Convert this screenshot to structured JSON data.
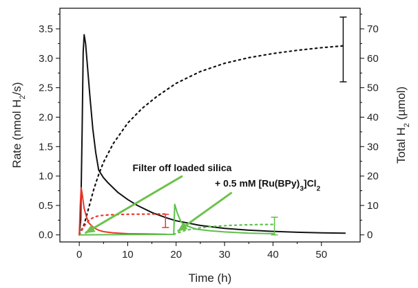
{
  "chart_data": {
    "type": "line",
    "xlabel": "Time (h)",
    "ylabel_left_parts": [
      "Rate (nmol H",
      "2",
      "/s)"
    ],
    "ylabel_right_parts": [
      "Total H",
      "2",
      " (µmol)"
    ],
    "xlim": [
      -4,
      58
    ],
    "ylim_left": [
      -0.12,
      3.85
    ],
    "ylim_right": [
      -2.4,
      77
    ],
    "x_ticks": [
      0,
      10,
      20,
      30,
      40,
      50
    ],
    "y_left_ticks": [
      0.0,
      0.5,
      1.0,
      1.5,
      2.0,
      2.5,
      3.0,
      3.5
    ],
    "y_right_ticks": [
      0,
      10,
      20,
      30,
      40,
      50,
      60,
      70
    ],
    "x_tick_labels": [
      "0",
      "10",
      "20",
      "30",
      "40",
      "50"
    ],
    "y_left_tick_labels": [
      "0.0",
      "0.5",
      "1.0",
      "1.5",
      "2.0",
      "2.5",
      "3.0",
      "3.5"
    ],
    "y_right_tick_labels": [
      "0",
      "10",
      "20",
      "30",
      "40",
      "50",
      "60",
      "70"
    ],
    "colors": {
      "black": "#111111",
      "red": "#e8362a",
      "green": "#5cbf48",
      "arrow": "#6cc24a"
    },
    "series": [
      {
        "color": "black",
        "style": "solid",
        "axis": "left",
        "x": [
          0,
          0.3,
          0.6,
          0.8,
          1.0,
          1.3,
          1.7,
          2.2,
          2.8,
          3.4,
          4,
          5,
          6,
          8,
          10,
          12,
          15,
          18,
          20,
          25,
          30,
          35,
          40,
          45,
          50,
          55
        ],
        "y": [
          0,
          0.25,
          1.8,
          3.1,
          3.4,
          3.25,
          2.85,
          2.35,
          1.8,
          1.4,
          1.1,
          0.97,
          0.88,
          0.72,
          0.6,
          0.5,
          0.38,
          0.29,
          0.24,
          0.16,
          0.11,
          0.08,
          0.06,
          0.045,
          0.035,
          0.03
        ]
      },
      {
        "color": "black",
        "style": "dotted",
        "axis": "right",
        "x": [
          0,
          1,
          2,
          3,
          4,
          5,
          7,
          10,
          13,
          16,
          20,
          25,
          30,
          35,
          40,
          45,
          50,
          55
        ],
        "y": [
          0,
          3.5,
          9.5,
          15.5,
          20.5,
          24.7,
          31,
          38,
          43,
          47,
          51.5,
          55.5,
          58.3,
          60.2,
          61.6,
          62.7,
          63.6,
          64.3
        ]
      },
      {
        "color": "red",
        "style": "solid",
        "axis": "left",
        "x": [
          0,
          0.2,
          0.4,
          0.6,
          1.0,
          1.5,
          2.0,
          3.0,
          4.0,
          5.0,
          7.0,
          10.0,
          14.0,
          18.0
        ],
        "y": [
          0,
          0.5,
          0.8,
          0.7,
          0.45,
          0.3,
          0.2,
          0.12,
          0.08,
          0.055,
          0.035,
          0.02,
          0.015,
          0.01
        ]
      },
      {
        "color": "red",
        "style": "dotted",
        "axis": "right",
        "x": [
          0,
          0.5,
          1,
          2,
          3,
          4,
          6,
          10,
          14,
          18
        ],
        "y": [
          0,
          1.5,
          3,
          5,
          6,
          6.5,
          6.8,
          7,
          7.05,
          7.1
        ]
      },
      {
        "color": "green",
        "style": "solid",
        "axis": "left",
        "x": [
          0,
          19.5,
          19.7,
          20.2,
          21,
          22,
          24,
          27,
          30,
          35,
          40.4
        ],
        "y": [
          0,
          0.01,
          0.52,
          0.38,
          0.22,
          0.16,
          0.1,
          0.07,
          0.05,
          0.03,
          0.02
        ]
      },
      {
        "color": "green",
        "style": "dotted",
        "axis": "right",
        "x": [
          19.5,
          22,
          25,
          28,
          31,
          34,
          37,
          40.4
        ],
        "y": [
          0.2,
          1.6,
          2.4,
          2.9,
          3.2,
          3.4,
          3.5,
          3.55
        ]
      }
    ],
    "error_bars": [
      {
        "color": "black",
        "axis": "right",
        "x": 54.5,
        "low": 52,
        "high": 74
      },
      {
        "color": "red",
        "axis": "right",
        "x": 17.8,
        "low": 2.5,
        "high": 7
      },
      {
        "color": "green",
        "axis": "right",
        "x": 40.3,
        "low": 0,
        "high": 6
      }
    ],
    "annotations": [
      {
        "text": "Filter off loaded silica",
        "color": "black",
        "tx": 11,
        "ty": 1.08,
        "ax1": 21.3,
        "ay1": 1.0,
        "ax2": 1.2,
        "ay2": 0.03
      },
      {
        "text_parts": [
          "+ 0.5 mM [Ru(BPy)",
          "3",
          "]Cl",
          "2"
        ],
        "color": "black",
        "tx": 28,
        "ty": 0.82,
        "ax1": 31.5,
        "ay1": 0.72,
        "ax2": 20.3,
        "ay2": 0.06
      }
    ]
  }
}
